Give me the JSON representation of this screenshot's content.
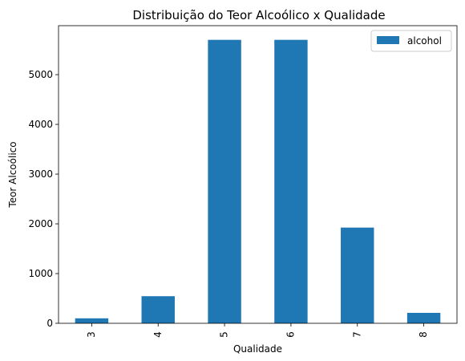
{
  "chart_data": {
    "type": "bar",
    "title": "Distribuição do Teor Alcoólico x Qualidade",
    "xlabel": "Qualidade",
    "ylabel": "Teor Alcoólico",
    "categories": [
      "3",
      "4",
      "5",
      "6",
      "7",
      "8"
    ],
    "series": [
      {
        "name": "alcohol",
        "values": [
          100,
          545,
          5700,
          5700,
          1925,
          210
        ]
      }
    ],
    "ylim": [
      0,
      5985
    ],
    "yticks": [
      0,
      1000,
      2000,
      3000,
      4000,
      5000
    ],
    "grid": false,
    "legend": "top-right",
    "bar_color": "#1f77b4"
  }
}
